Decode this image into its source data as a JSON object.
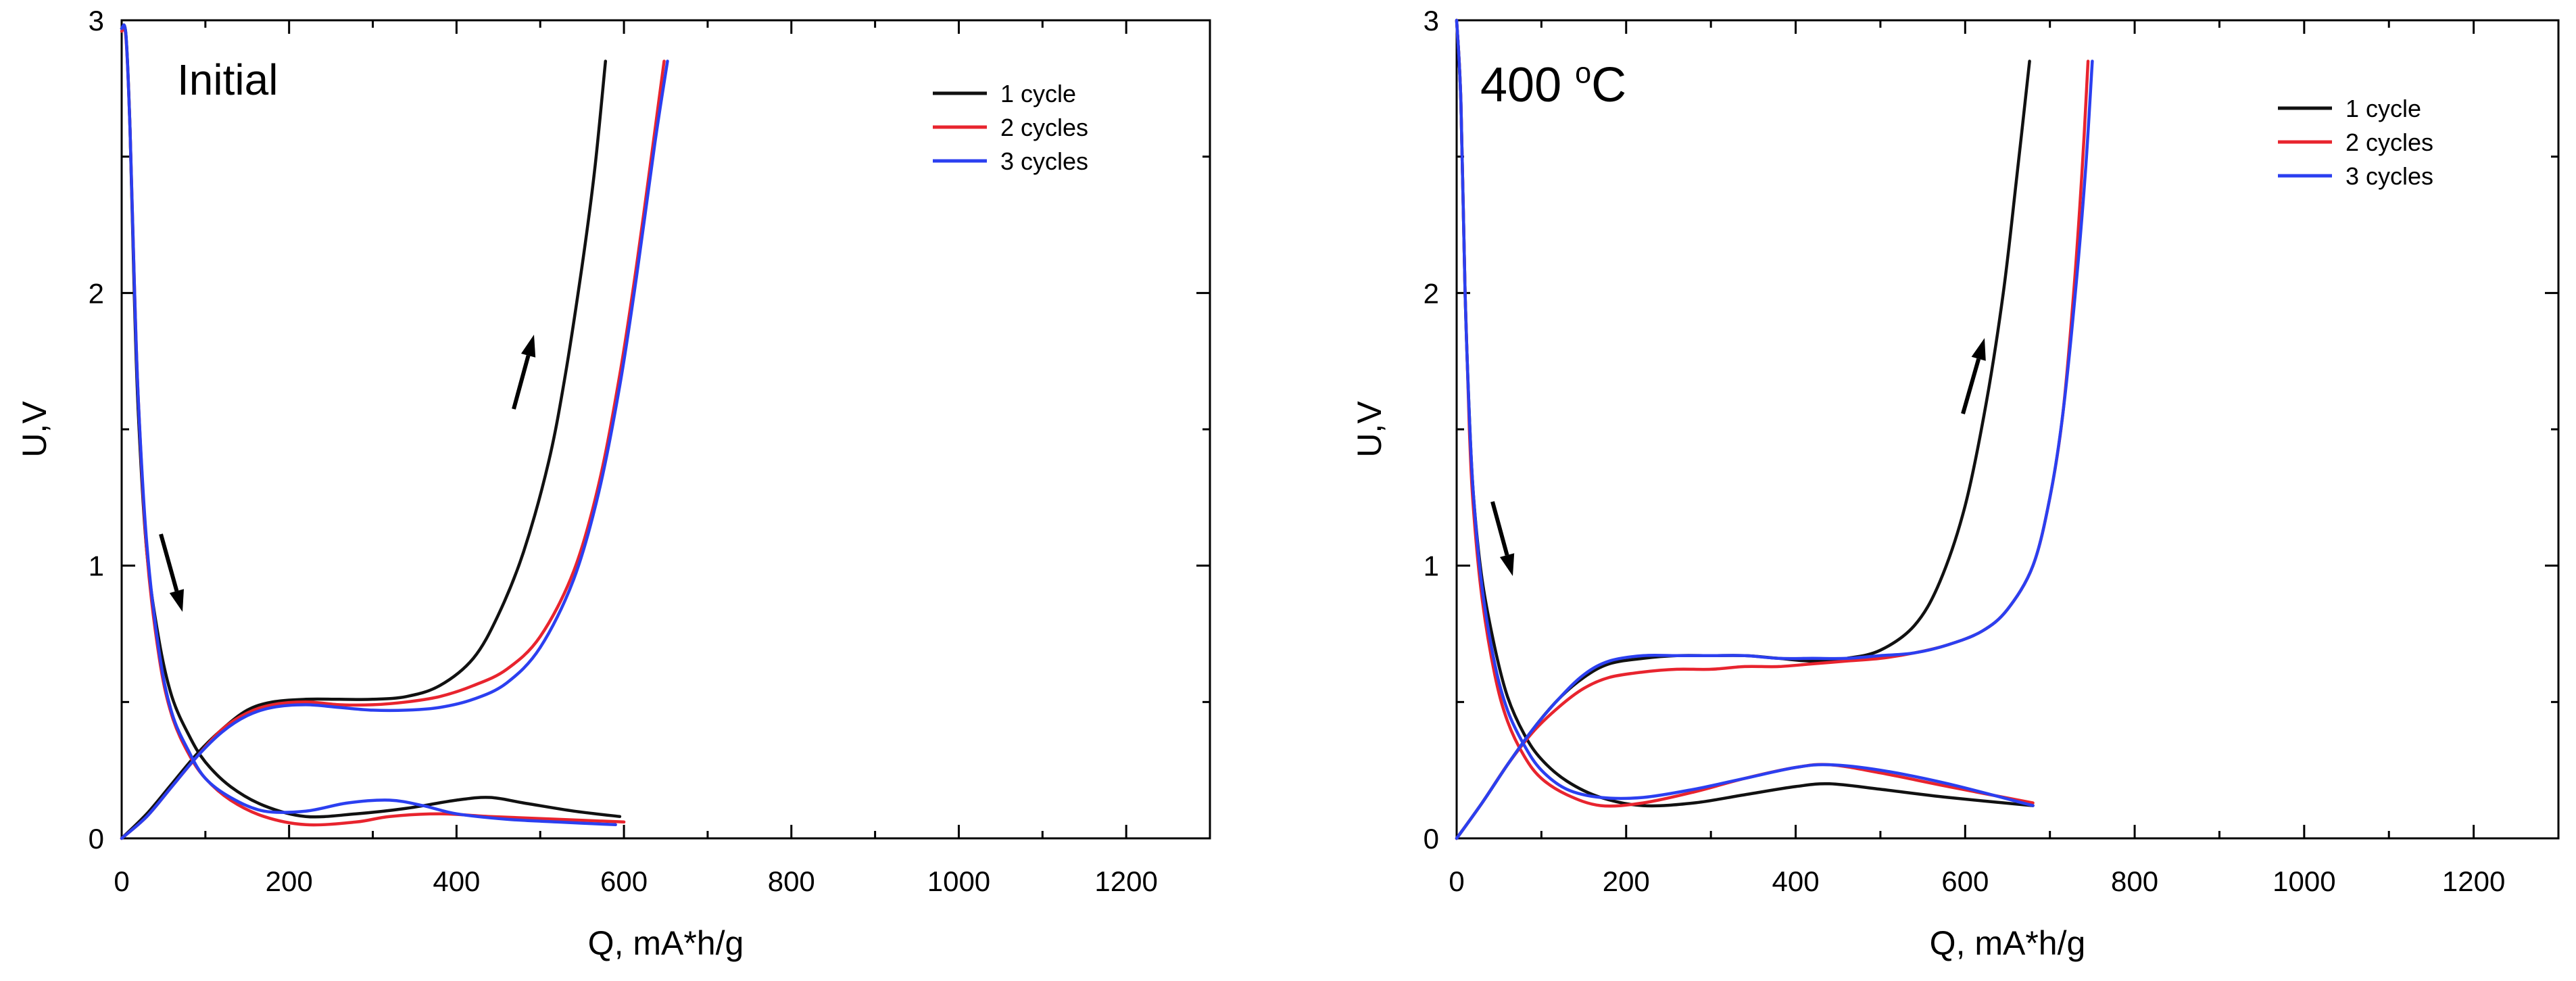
{
  "chart_data": [
    {
      "type": "line",
      "title": "Initial",
      "title_superscript": "",
      "xlabel": "Q, mA*h/g",
      "ylabel": "U,V",
      "xlim": [
        0,
        1300
      ],
      "ylim": [
        0,
        3.0
      ],
      "xticks": [
        0,
        200,
        400,
        600,
        800,
        1000,
        1200
      ],
      "yticks": [
        0,
        1,
        2,
        3
      ],
      "tick_labels_x": [
        "0",
        "200",
        "400",
        "600",
        "800",
        "1000",
        "1200"
      ],
      "tick_labels_y": [
        "0",
        "1",
        "2",
        "3"
      ],
      "legend_position": "top-right",
      "series": [
        {
          "name": "1 cycle",
          "color": "#111111",
          "discharge": [
            [
              0,
              2.97
            ],
            [
              5,
              2.95
            ],
            [
              10,
              2.6
            ],
            [
              15,
              2.0
            ],
            [
              20,
              1.55
            ],
            [
              30,
              1.05
            ],
            [
              45,
              0.72
            ],
            [
              60,
              0.52
            ],
            [
              80,
              0.38
            ],
            [
              100,
              0.28
            ],
            [
              130,
              0.19
            ],
            [
              170,
              0.12
            ],
            [
              220,
              0.08
            ],
            [
              280,
              0.09
            ],
            [
              340,
              0.11
            ],
            [
              400,
              0.14
            ],
            [
              440,
              0.15
            ],
            [
              480,
              0.13
            ],
            [
              540,
              0.1
            ],
            [
              595,
              0.08
            ]
          ],
          "charge": [
            [
              0,
              0
            ],
            [
              30,
              0.09
            ],
            [
              60,
              0.2
            ],
            [
              90,
              0.31
            ],
            [
              120,
              0.4
            ],
            [
              150,
              0.47
            ],
            [
              180,
              0.5
            ],
            [
              220,
              0.51
            ],
            [
              260,
              0.51
            ],
            [
              300,
              0.51
            ],
            [
              340,
              0.52
            ],
            [
              380,
              0.56
            ],
            [
              420,
              0.66
            ],
            [
              450,
              0.82
            ],
            [
              480,
              1.05
            ],
            [
              510,
              1.38
            ],
            [
              530,
              1.7
            ],
            [
              550,
              2.1
            ],
            [
              565,
              2.45
            ],
            [
              578,
              2.85
            ]
          ]
        },
        {
          "name": "2 cycles",
          "color": "#e8242e",
          "discharge": [
            [
              0,
              2.96
            ],
            [
              5,
              2.94
            ],
            [
              10,
              2.6
            ],
            [
              15,
              2.05
            ],
            [
              20,
              1.6
            ],
            [
              30,
              1.05
            ],
            [
              45,
              0.66
            ],
            [
              60,
              0.45
            ],
            [
              80,
              0.31
            ],
            [
              100,
              0.22
            ],
            [
              130,
              0.14
            ],
            [
              170,
              0.08
            ],
            [
              220,
              0.05
            ],
            [
              280,
              0.06
            ],
            [
              320,
              0.08
            ],
            [
              380,
              0.09
            ],
            [
              440,
              0.08
            ],
            [
              520,
              0.07
            ],
            [
              600,
              0.06
            ]
          ],
          "charge": [
            [
              0,
              0
            ],
            [
              30,
              0.08
            ],
            [
              60,
              0.19
            ],
            [
              90,
              0.3
            ],
            [
              120,
              0.4
            ],
            [
              150,
              0.46
            ],
            [
              180,
              0.49
            ],
            [
              220,
              0.5
            ],
            [
              260,
              0.49
            ],
            [
              300,
              0.49
            ],
            [
              340,
              0.5
            ],
            [
              380,
              0.52
            ],
            [
              420,
              0.56
            ],
            [
              460,
              0.62
            ],
            [
              500,
              0.74
            ],
            [
              540,
              0.98
            ],
            [
              570,
              1.3
            ],
            [
              595,
              1.7
            ],
            [
              615,
              2.1
            ],
            [
              635,
              2.55
            ],
            [
              648,
              2.85
            ]
          ]
        },
        {
          "name": "3 cycles",
          "color": "#2b3ff0",
          "discharge": [
            [
              0,
              2.97
            ],
            [
              5,
              2.95
            ],
            [
              10,
              2.6
            ],
            [
              15,
              2.05
            ],
            [
              20,
              1.6
            ],
            [
              30,
              1.08
            ],
            [
              45,
              0.68
            ],
            [
              60,
              0.46
            ],
            [
              80,
              0.32
            ],
            [
              100,
              0.22
            ],
            [
              130,
              0.15
            ],
            [
              170,
              0.1
            ],
            [
              220,
              0.1
            ],
            [
              270,
              0.13
            ],
            [
              320,
              0.14
            ],
            [
              360,
              0.12
            ],
            [
              400,
              0.09
            ],
            [
              460,
              0.07
            ],
            [
              520,
              0.06
            ],
            [
              590,
              0.05
            ]
          ],
          "charge": [
            [
              0,
              0
            ],
            [
              30,
              0.08
            ],
            [
              60,
              0.19
            ],
            [
              90,
              0.3
            ],
            [
              120,
              0.39
            ],
            [
              150,
              0.45
            ],
            [
              180,
              0.48
            ],
            [
              220,
              0.49
            ],
            [
              260,
              0.48
            ],
            [
              300,
              0.47
            ],
            [
              340,
              0.47
            ],
            [
              380,
              0.48
            ],
            [
              420,
              0.51
            ],
            [
              460,
              0.57
            ],
            [
              500,
              0.7
            ],
            [
              540,
              0.95
            ],
            [
              570,
              1.27
            ],
            [
              595,
              1.66
            ],
            [
              615,
              2.06
            ],
            [
              637,
              2.55
            ],
            [
              652,
              2.85
            ]
          ]
        }
      ]
    },
    {
      "type": "line",
      "title": "400 ",
      "title_superscript": "o",
      "title_suffix": "C",
      "xlabel": "Q, mA*h/g",
      "ylabel": "U,V",
      "xlim": [
        0,
        1300
      ],
      "ylim": [
        0,
        3.0
      ],
      "xticks": [
        0,
        200,
        400,
        600,
        800,
        1000,
        1200
      ],
      "yticks": [
        0,
        1,
        2,
        3
      ],
      "tick_labels_x": [
        "0",
        "200",
        "400",
        "600",
        "800",
        "1000",
        "1200"
      ],
      "tick_labels_y": [
        "0",
        "1",
        "2",
        "3"
      ],
      "legend_position": "top-right",
      "series": [
        {
          "name": "1 cycle",
          "color": "#111111",
          "discharge": [
            [
              0,
              3.0
            ],
            [
              5,
              2.7
            ],
            [
              10,
              2.0
            ],
            [
              15,
              1.55
            ],
            [
              20,
              1.25
            ],
            [
              30,
              0.95
            ],
            [
              45,
              0.7
            ],
            [
              60,
              0.52
            ],
            [
              80,
              0.38
            ],
            [
              100,
              0.29
            ],
            [
              130,
              0.21
            ],
            [
              170,
              0.15
            ],
            [
              220,
              0.12
            ],
            [
              280,
              0.13
            ],
            [
              340,
              0.16
            ],
            [
              400,
              0.19
            ],
            [
              440,
              0.2
            ],
            [
              500,
              0.18
            ],
            [
              580,
              0.15
            ],
            [
              680,
              0.12
            ]
          ],
          "charge": [
            [
              0,
              0
            ],
            [
              30,
              0.13
            ],
            [
              60,
              0.27
            ],
            [
              90,
              0.4
            ],
            [
              120,
              0.51
            ],
            [
              150,
              0.59
            ],
            [
              180,
              0.64
            ],
            [
              220,
              0.66
            ],
            [
              260,
              0.67
            ],
            [
              300,
              0.67
            ],
            [
              340,
              0.67
            ],
            [
              380,
              0.66
            ],
            [
              420,
              0.65
            ],
            [
              460,
              0.66
            ],
            [
              500,
              0.69
            ],
            [
              540,
              0.78
            ],
            [
              570,
              0.94
            ],
            [
              600,
              1.22
            ],
            [
              625,
              1.6
            ],
            [
              645,
              2.0
            ],
            [
              660,
              2.4
            ],
            [
              676,
              2.85
            ]
          ]
        },
        {
          "name": "2 cycles",
          "color": "#e8242e",
          "discharge": [
            [
              0,
              3.0
            ],
            [
              5,
              2.7
            ],
            [
              10,
              2.0
            ],
            [
              15,
              1.5
            ],
            [
              20,
              1.2
            ],
            [
              30,
              0.88
            ],
            [
              45,
              0.6
            ],
            [
              60,
              0.43
            ],
            [
              80,
              0.3
            ],
            [
              100,
              0.22
            ],
            [
              130,
              0.16
            ],
            [
              170,
              0.12
            ],
            [
              220,
              0.13
            ],
            [
              280,
              0.17
            ],
            [
              340,
              0.22
            ],
            [
              400,
              0.26
            ],
            [
              440,
              0.27
            ],
            [
              500,
              0.24
            ],
            [
              580,
              0.19
            ],
            [
              680,
              0.13
            ]
          ],
          "charge": [
            [
              0,
              0
            ],
            [
              30,
              0.13
            ],
            [
              60,
              0.27
            ],
            [
              90,
              0.39
            ],
            [
              120,
              0.48
            ],
            [
              150,
              0.55
            ],
            [
              180,
              0.59
            ],
            [
              220,
              0.61
            ],
            [
              260,
              0.62
            ],
            [
              300,
              0.62
            ],
            [
              340,
              0.63
            ],
            [
              380,
              0.63
            ],
            [
              420,
              0.64
            ],
            [
              460,
              0.65
            ],
            [
              500,
              0.66
            ],
            [
              540,
              0.68
            ],
            [
              580,
              0.71
            ],
            [
              620,
              0.76
            ],
            [
              650,
              0.84
            ],
            [
              680,
              1.0
            ],
            [
              700,
              1.25
            ],
            [
              715,
              1.55
            ],
            [
              728,
              2.0
            ],
            [
              738,
              2.45
            ],
            [
              745,
              2.85
            ]
          ]
        },
        {
          "name": "3 cycles",
          "color": "#2b3ff0",
          "discharge": [
            [
              0,
              3.0
            ],
            [
              5,
              2.7
            ],
            [
              10,
              2.0
            ],
            [
              15,
              1.55
            ],
            [
              20,
              1.25
            ],
            [
              30,
              0.92
            ],
            [
              45,
              0.64
            ],
            [
              60,
              0.47
            ],
            [
              80,
              0.34
            ],
            [
              100,
              0.25
            ],
            [
              130,
              0.18
            ],
            [
              170,
              0.15
            ],
            [
              220,
              0.15
            ],
            [
              280,
              0.18
            ],
            [
              340,
              0.22
            ],
            [
              400,
              0.26
            ],
            [
              440,
              0.27
            ],
            [
              500,
              0.25
            ],
            [
              580,
              0.2
            ],
            [
              680,
              0.12
            ]
          ],
          "charge": [
            [
              0,
              0
            ],
            [
              30,
              0.13
            ],
            [
              60,
              0.27
            ],
            [
              90,
              0.4
            ],
            [
              120,
              0.51
            ],
            [
              150,
              0.6
            ],
            [
              180,
              0.65
            ],
            [
              220,
              0.67
            ],
            [
              260,
              0.67
            ],
            [
              300,
              0.67
            ],
            [
              340,
              0.67
            ],
            [
              380,
              0.66
            ],
            [
              420,
              0.66
            ],
            [
              460,
              0.66
            ],
            [
              500,
              0.67
            ],
            [
              540,
              0.68
            ],
            [
              580,
              0.71
            ],
            [
              620,
              0.76
            ],
            [
              650,
              0.84
            ],
            [
              680,
              1.0
            ],
            [
              700,
              1.25
            ],
            [
              715,
              1.55
            ],
            [
              730,
              2.0
            ],
            [
              742,
              2.45
            ],
            [
              750,
              2.85
            ]
          ]
        }
      ]
    }
  ]
}
